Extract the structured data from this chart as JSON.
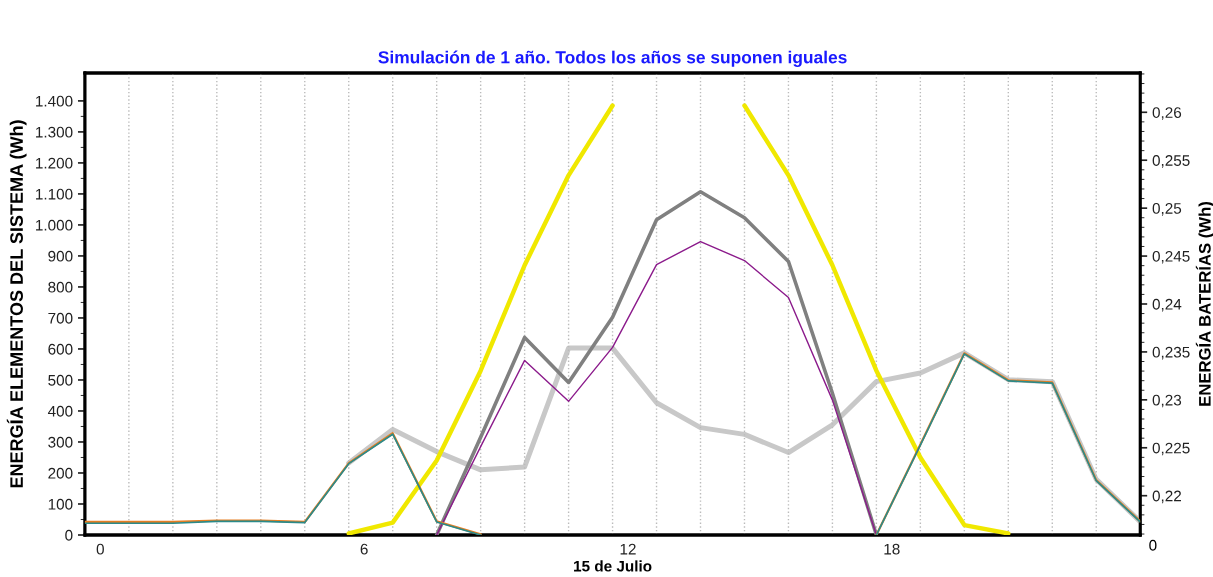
{
  "chart_data": {
    "type": "line",
    "title": "Simulación de 1 año. Todos los años se suponen iguales",
    "xlabel": "15 de Julio",
    "ylabel": "ENERGÍA ELEMENTOS DEL SISTEMA (Wh)",
    "y2label": "ENERGÍA BATERÍAS (Wh)",
    "x": [
      -0.35,
      0.65,
      1.65,
      2.65,
      3.65,
      4.65,
      5.65,
      6.65,
      7.65,
      8.65,
      9.65,
      10.65,
      11.65,
      12.65,
      13.65,
      14.65,
      15.65,
      16.65,
      17.65,
      18.65,
      19.65,
      20.65,
      21.65,
      22.65,
      23.65
    ],
    "series": [
      {
        "color": "#f0e800",
        "values": [
          null,
          null,
          null,
          null,
          null,
          null,
          5,
          40,
          240,
          530,
          870,
          1160,
          1385,
          null,
          null,
          1385,
          1160,
          870,
          530,
          250,
          32,
          5,
          null,
          null,
          null
        ]
      },
      {
        "color": "#c8c8c8",
        "axis": "y2",
        "values": [
          null,
          null,
          null,
          null,
          null,
          null,
          0.2234,
          0.2269,
          0.2246,
          0.2227,
          0.223,
          0.2354,
          0.2354,
          0.2297,
          0.2271,
          0.2264,
          0.2245,
          0.2274,
          0.2319,
          0.2328,
          0.2349,
          0.2321,
          0.2319,
          0.2217,
          0.2173
        ]
      },
      {
        "color": "#808080",
        "values": [
          null,
          null,
          null,
          null,
          null,
          null,
          null,
          null,
          0,
          315,
          637,
          492,
          702,
          1017,
          1107,
          1023,
          882,
          457,
          0,
          null,
          null,
          null,
          null,
          null,
          null
        ]
      },
      {
        "color": "#8b1a8b",
        "values": [
          null,
          null,
          null,
          null,
          null,
          null,
          null,
          null,
          0,
          285,
          563,
          431,
          605,
          872,
          946,
          885,
          766,
          435,
          0,
          null,
          null,
          null,
          null,
          null,
          null
        ]
      },
      {
        "color": "#e67e22",
        "values": [
          42,
          42,
          42,
          46,
          46,
          42,
          232,
          328,
          44,
          2,
          null,
          null,
          null,
          null,
          null,
          null,
          null,
          null,
          0,
          292,
          586,
          499,
          492,
          177,
          44
        ]
      },
      {
        "color": "#2a8a8a",
        "values": [
          38,
          38,
          38,
          44,
          44,
          40,
          230,
          325,
          42,
          0,
          null,
          null,
          null,
          null,
          null,
          null,
          null,
          null,
          0,
          290,
          584,
          497,
          490,
          175,
          42
        ]
      }
    ],
    "xlim": [
      -0.35,
      23.65
    ],
    "xticks": [
      0,
      {
        "value": 0.65,
        "label": null
      },
      {
        "value": 1.65,
        "label": null
      },
      {
        "value": 2.65,
        "label": null
      },
      {
        "value": 3.65,
        "label": null
      },
      {
        "value": 4.65,
        "label": null
      },
      {
        "value": 5.65,
        "label": null
      },
      6,
      {
        "value": 6.65,
        "label": null
      },
      {
        "value": 7.65,
        "label": null
      },
      {
        "value": 8.65,
        "label": null
      },
      {
        "value": 9.65,
        "label": null
      },
      {
        "value": 10.65,
        "label": null
      },
      {
        "value": 11.65,
        "label": null
      },
      12,
      {
        "value": 12.65,
        "label": null
      },
      {
        "value": 13.65,
        "label": null
      },
      {
        "value": 14.65,
        "label": null
      },
      {
        "value": 15.65,
        "label": null
      },
      {
        "value": 16.65,
        "label": null
      },
      {
        "value": 17.65,
        "label": null
      },
      18,
      {
        "value": 18.65,
        "label": null
      },
      {
        "value": 19.65,
        "label": null
      },
      {
        "value": 20.65,
        "label": null
      },
      {
        "value": 21.65,
        "label": null
      },
      {
        "value": 22.65,
        "label": null
      }
    ],
    "ylim": [
      0,
      1490
    ],
    "yticks": [
      0,
      100,
      200,
      300,
      400,
      500,
      600,
      700,
      800,
      900,
      {
        "value": 1000,
        "label": "1.000"
      },
      {
        "value": 1100,
        "label": "1.100"
      },
      {
        "value": 1200,
        "label": "1.200"
      },
      {
        "value": 1300,
        "label": "1.300"
      },
      {
        "value": 1400,
        "label": "1.400"
      }
    ],
    "y2lim": [
      0.2159,
      0.2641
    ],
    "y2ticks": [
      {
        "value": 0.22,
        "label": "0,22"
      },
      {
        "value": 0.225,
        "label": "0,225"
      },
      {
        "value": 0.23,
        "label": "0,23"
      },
      {
        "value": 0.235,
        "label": "0,235"
      },
      {
        "value": 0.24,
        "label": "0,24"
      },
      {
        "value": 0.245,
        "label": "0,245"
      },
      {
        "value": 0.25,
        "label": "0,25"
      },
      {
        "value": 0.255,
        "label": "0,255"
      },
      {
        "value": 0.26,
        "label": "0,26"
      }
    ],
    "annotations": [
      "0"
    ],
    "grid": "x",
    "legend": false,
    "marker": "none",
    "line_style": "solid"
  }
}
